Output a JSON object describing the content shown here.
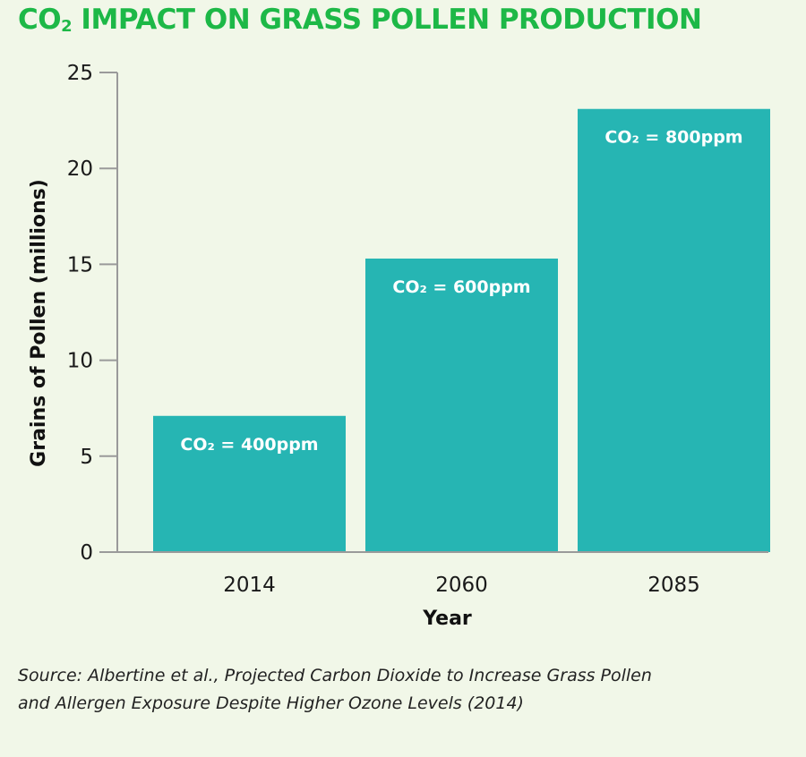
{
  "chart_data": {
    "type": "bar",
    "title": "CO₂ IMPACT ON GRASS POLLEN PRODUCTION",
    "title_parts": {
      "pre": "CO",
      "sub": "2",
      "post": " IMPACT ON GRASS POLLEN PRODUCTION"
    },
    "categories": [
      "2014",
      "2060",
      "2085"
    ],
    "values": [
      7.1,
      15.3,
      23.1
    ],
    "bar_labels": [
      "CO₂ = 400ppm",
      "CO₂ = 600ppm",
      "CO₂ = 800ppm"
    ],
    "xlabel": "Year",
    "ylabel": "Grains of Pollen (millions)",
    "ylim": [
      0,
      25
    ],
    "yticks": [
      0,
      5,
      10,
      15,
      20,
      25
    ],
    "grid": false,
    "colors": {
      "bar": "#26b5b3",
      "title": "#1db847",
      "axis": "#9a9a9a",
      "background": "#f1f7e8"
    }
  },
  "source": {
    "line1": "Source: Albertine et al., Projected Carbon Dioxide to Increase Grass Pollen",
    "line2": "and Allergen Exposure Despite Higher Ozone Levels (2014)"
  }
}
